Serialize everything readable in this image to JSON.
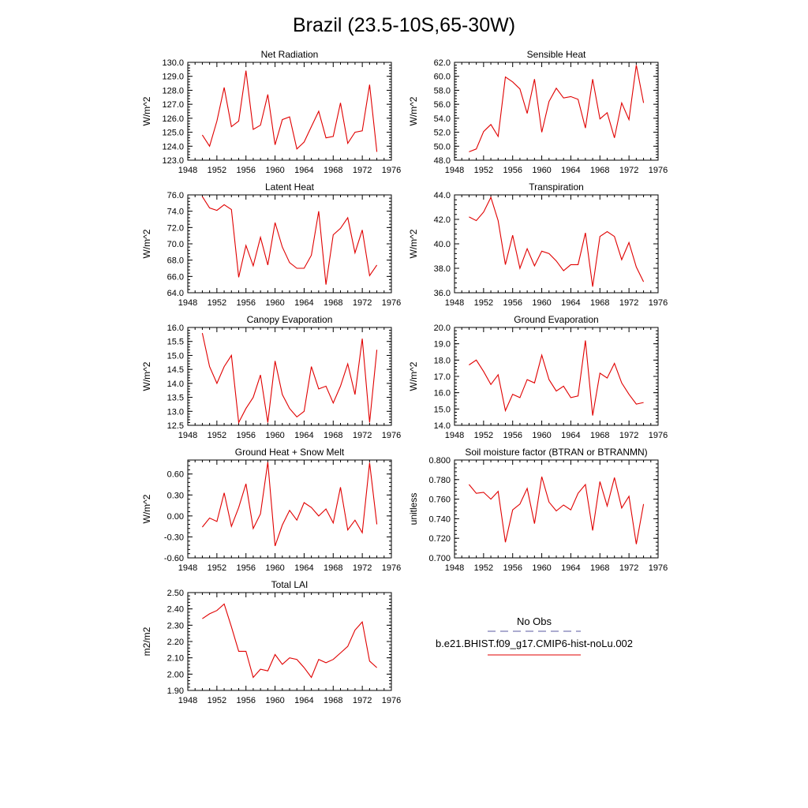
{
  "title": "Brazil (23.5-10S,65-30W)",
  "legend": {
    "obs_label": "No Obs",
    "model_label": "b.e21.BHIST.f09_g17.CMIP6-hist-noLu.002",
    "obs_color": "#5a5aa0",
    "model_color": "#e00000"
  },
  "chart_data": [
    {
      "type": "line",
      "title": "Net Radiation",
      "ylabel": "W/m^2",
      "xlim": [
        1948,
        1976
      ],
      "ylim": [
        123.0,
        130.0
      ],
      "xticks": [
        "1948",
        "1952",
        "1956",
        "1960",
        "1964",
        "1968",
        "1972",
        "1976"
      ],
      "yticks": [
        "123.0",
        "124.0",
        "125.0",
        "126.0",
        "127.0",
        "128.0",
        "129.0",
        "130.0"
      ],
      "color": "#e00000",
      "x": [
        1950,
        1951,
        1952,
        1953,
        1954,
        1955,
        1956,
        1957,
        1958,
        1959,
        1960,
        1961,
        1962,
        1963,
        1964,
        1965,
        1966,
        1967,
        1968,
        1969,
        1970,
        1971,
        1972,
        1973,
        1974
      ],
      "values": [
        124.8,
        124.0,
        125.8,
        128.2,
        125.4,
        125.8,
        129.4,
        125.2,
        125.5,
        127.7,
        124.1,
        125.9,
        126.1,
        123.8,
        124.3,
        125.4,
        126.5,
        124.6,
        124.7,
        127.1,
        124.2,
        125.0,
        125.1,
        128.4,
        123.6
      ]
    },
    {
      "type": "line",
      "title": "Sensible Heat",
      "ylabel": "W/m^2",
      "xlim": [
        1948,
        1976
      ],
      "ylim": [
        48.0,
        62.0
      ],
      "xticks": [
        "1948",
        "1952",
        "1956",
        "1960",
        "1964",
        "1968",
        "1972",
        "1976"
      ],
      "yticks": [
        "48.0",
        "50.0",
        "52.0",
        "54.0",
        "56.0",
        "58.0",
        "60.0",
        "62.0"
      ],
      "color": "#e00000",
      "x": [
        1950,
        1951,
        1952,
        1953,
        1954,
        1955,
        1956,
        1957,
        1958,
        1959,
        1960,
        1961,
        1962,
        1963,
        1964,
        1965,
        1966,
        1967,
        1968,
        1969,
        1970,
        1971,
        1972,
        1973,
        1974
      ],
      "values": [
        49.2,
        49.6,
        52.1,
        53.1,
        51.4,
        59.9,
        59.2,
        58.2,
        54.7,
        59.6,
        52.0,
        56.4,
        58.3,
        56.9,
        57.1,
        56.7,
        52.6,
        59.6,
        53.9,
        54.8,
        51.2,
        56.2,
        53.8,
        61.6,
        56.2
      ]
    },
    {
      "type": "line",
      "title": "Latent Heat",
      "ylabel": "W/m^2",
      "xlim": [
        1948,
        1976
      ],
      "ylim": [
        64.0,
        76.0
      ],
      "xticks": [
        "1948",
        "1952",
        "1956",
        "1960",
        "1964",
        "1968",
        "1972",
        "1976"
      ],
      "yticks": [
        "64.0",
        "66.0",
        "68.0",
        "70.0",
        "72.0",
        "74.0",
        "76.0"
      ],
      "color": "#e00000",
      "x": [
        1950,
        1951,
        1952,
        1953,
        1954,
        1955,
        1956,
        1957,
        1958,
        1959,
        1960,
        1961,
        1962,
        1963,
        1964,
        1965,
        1966,
        1967,
        1968,
        1969,
        1970,
        1971,
        1972,
        1973,
        1974
      ],
      "values": [
        75.8,
        74.4,
        74.1,
        74.8,
        74.2,
        65.9,
        69.8,
        67.3,
        70.8,
        67.4,
        72.6,
        69.6,
        67.7,
        67.0,
        67.0,
        68.6,
        74.0,
        65.0,
        71.1,
        71.9,
        73.2,
        68.9,
        71.7,
        66.1,
        67.4
      ]
    },
    {
      "type": "line",
      "title": "Transpiration",
      "ylabel": "W/m^2",
      "xlim": [
        1948,
        1976
      ],
      "ylim": [
        36.0,
        44.0
      ],
      "xticks": [
        "1948",
        "1952",
        "1956",
        "1960",
        "1964",
        "1968",
        "1972",
        "1976"
      ],
      "yticks": [
        "36.0",
        "38.0",
        "40.0",
        "42.0",
        "44.0"
      ],
      "color": "#e00000",
      "x": [
        1950,
        1951,
        1952,
        1953,
        1954,
        1955,
        1956,
        1957,
        1958,
        1959,
        1960,
        1961,
        1962,
        1963,
        1964,
        1965,
        1966,
        1967,
        1968,
        1969,
        1970,
        1971,
        1972,
        1973,
        1974
      ],
      "values": [
        42.2,
        41.9,
        42.6,
        43.8,
        41.9,
        38.3,
        40.7,
        38.0,
        39.6,
        38.2,
        39.4,
        39.2,
        38.6,
        37.8,
        38.3,
        38.3,
        40.9,
        36.5,
        40.6,
        41.0,
        40.6,
        38.7,
        40.1,
        38.1,
        36.9
      ]
    },
    {
      "type": "line",
      "title": "Canopy Evaporation",
      "ylabel": "W/m^2",
      "xlim": [
        1948,
        1976
      ],
      "ylim": [
        12.5,
        16.0
      ],
      "xticks": [
        "1948",
        "1952",
        "1956",
        "1960",
        "1964",
        "1968",
        "1972",
        "1976"
      ],
      "yticks": [
        "12.5",
        "13.0",
        "13.5",
        "14.0",
        "14.5",
        "15.0",
        "15.5",
        "16.0"
      ],
      "color": "#e00000",
      "x": [
        1950,
        1951,
        1952,
        1953,
        1954,
        1955,
        1956,
        1957,
        1958,
        1959,
        1960,
        1961,
        1962,
        1963,
        1964,
        1965,
        1966,
        1967,
        1968,
        1969,
        1970,
        1971,
        1972,
        1973,
        1974
      ],
      "values": [
        15.8,
        14.6,
        14.0,
        14.6,
        15.0,
        12.6,
        13.1,
        13.5,
        14.3,
        12.6,
        14.8,
        13.6,
        13.1,
        12.8,
        13.0,
        14.6,
        13.8,
        13.9,
        13.3,
        13.9,
        14.7,
        13.6,
        15.6,
        12.6,
        15.2
      ]
    },
    {
      "type": "line",
      "title": "Ground Evaporation",
      "ylabel": "W/m^2",
      "xlim": [
        1948,
        1976
      ],
      "ylim": [
        14.0,
        20.0
      ],
      "xticks": [
        "1948",
        "1952",
        "1956",
        "1960",
        "1964",
        "1968",
        "1972",
        "1976"
      ],
      "yticks": [
        "14.0",
        "15.0",
        "16.0",
        "17.0",
        "18.0",
        "19.0",
        "20.0"
      ],
      "color": "#e00000",
      "x": [
        1950,
        1951,
        1952,
        1953,
        1954,
        1955,
        1956,
        1957,
        1958,
        1959,
        1960,
        1961,
        1962,
        1963,
        1964,
        1965,
        1966,
        1967,
        1968,
        1969,
        1970,
        1971,
        1972,
        1973,
        1974
      ],
      "values": [
        17.7,
        18.0,
        17.3,
        16.5,
        17.1,
        14.9,
        15.9,
        15.7,
        16.8,
        16.6,
        18.3,
        16.8,
        16.1,
        16.4,
        15.7,
        15.8,
        19.2,
        14.6,
        17.2,
        16.9,
        17.8,
        16.6,
        15.9,
        15.3,
        15.4
      ]
    },
    {
      "type": "line",
      "title": "Ground Heat + Snow Melt",
      "ylabel": "W/m^2",
      "xlim": [
        1948,
        1976
      ],
      "ylim": [
        -0.6,
        0.8
      ],
      "xticks": [
        "1948",
        "1952",
        "1956",
        "1960",
        "1964",
        "1968",
        "1972",
        "1976"
      ],
      "yticks": [
        "-0.60",
        "-0.30",
        "0.00",
        "0.30",
        "0.60"
      ],
      "yticks_values": [
        -0.6,
        -0.3,
        0.0,
        0.3,
        0.6
      ],
      "color": "#e00000",
      "x": [
        1950,
        1951,
        1952,
        1953,
        1954,
        1955,
        1956,
        1957,
        1958,
        1959,
        1960,
        1961,
        1962,
        1963,
        1964,
        1965,
        1966,
        1967,
        1968,
        1969,
        1970,
        1971,
        1972,
        1973,
        1974
      ],
      "values": [
        -0.16,
        -0.03,
        -0.08,
        0.33,
        -0.15,
        0.12,
        0.46,
        -0.18,
        0.03,
        0.77,
        -0.43,
        -0.13,
        0.08,
        -0.06,
        0.19,
        0.12,
        0.0,
        0.1,
        -0.1,
        0.41,
        -0.2,
        -0.06,
        -0.24,
        0.76,
        -0.12
      ]
    },
    {
      "type": "line",
      "title": "Soil moisture factor (BTRAN or BTRANMN)",
      "ylabel": "unitless",
      "xlim": [
        1948,
        1976
      ],
      "ylim": [
        0.7,
        0.8
      ],
      "xticks": [
        "1948",
        "1952",
        "1956",
        "1960",
        "1964",
        "1968",
        "1972",
        "1976"
      ],
      "yticks": [
        "0.700",
        "0.720",
        "0.740",
        "0.760",
        "0.780",
        "0.800"
      ],
      "color": "#e00000",
      "x": [
        1950,
        1951,
        1952,
        1953,
        1954,
        1955,
        1956,
        1957,
        1958,
        1959,
        1960,
        1961,
        1962,
        1963,
        1964,
        1965,
        1966,
        1967,
        1968,
        1969,
        1970,
        1971,
        1972,
        1973,
        1974
      ],
      "values": [
        0.775,
        0.766,
        0.767,
        0.76,
        0.768,
        0.716,
        0.749,
        0.755,
        0.771,
        0.735,
        0.783,
        0.757,
        0.748,
        0.754,
        0.749,
        0.766,
        0.775,
        0.728,
        0.778,
        0.753,
        0.782,
        0.751,
        0.763,
        0.714,
        0.755
      ]
    },
    {
      "type": "line",
      "title": "Total LAI",
      "ylabel": "m2/m2",
      "xlim": [
        1948,
        1976
      ],
      "ylim": [
        1.9,
        2.5
      ],
      "xticks": [
        "1948",
        "1952",
        "1956",
        "1960",
        "1964",
        "1968",
        "1972",
        "1976"
      ],
      "yticks": [
        "1.90",
        "2.00",
        "2.10",
        "2.20",
        "2.30",
        "2.40",
        "2.50"
      ],
      "color": "#e00000",
      "x": [
        1950,
        1951,
        1952,
        1953,
        1954,
        1955,
        1956,
        1957,
        1958,
        1959,
        1960,
        1961,
        1962,
        1963,
        1964,
        1965,
        1966,
        1967,
        1968,
        1969,
        1970,
        1971,
        1972,
        1973,
        1974
      ],
      "values": [
        2.34,
        2.37,
        2.39,
        2.43,
        2.29,
        2.14,
        2.14,
        1.98,
        2.03,
        2.02,
        2.12,
        2.06,
        2.1,
        2.09,
        2.04,
        1.98,
        2.09,
        2.07,
        2.09,
        2.13,
        2.17,
        2.27,
        2.32,
        2.08,
        2.04
      ]
    }
  ]
}
